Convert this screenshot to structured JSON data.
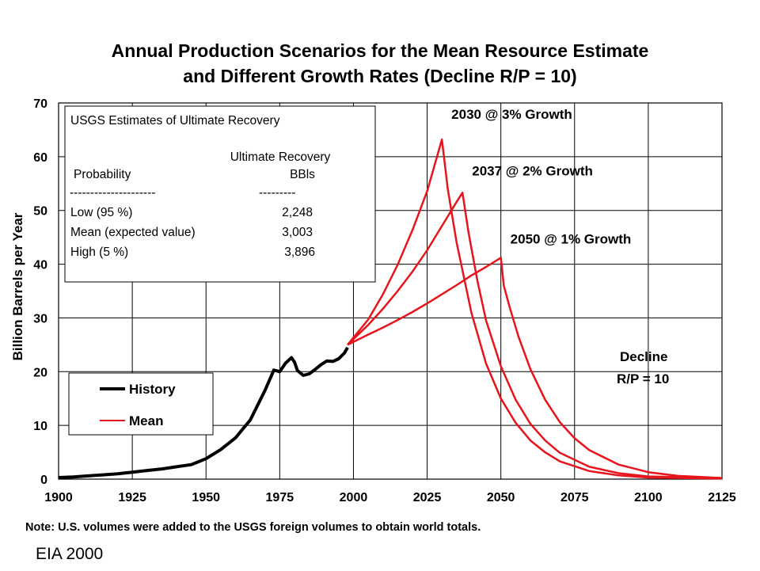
{
  "chart_data": {
    "type": "line",
    "title": "Annual Production Scenarios for the Mean Resource Estimate",
    "subtitle": "and Different Growth Rates (Decline R/P = 10)",
    "xlabel": "",
    "ylabel": "Billion Barrels per Year",
    "xlim": [
      1900,
      2125
    ],
    "ylim": [
      0,
      70
    ],
    "x_ticks": [
      "1900",
      "1925",
      "1950",
      "1975",
      "2000",
      "2025",
      "2050",
      "2075",
      "2100",
      "2125"
    ],
    "y_ticks": [
      "0",
      "10",
      "20",
      "30",
      "40",
      "50",
      "60",
      "70"
    ],
    "grid": true,
    "legend": {
      "placement": "bottom-left",
      "entries": [
        {
          "label": "History",
          "color": "#000000"
        },
        {
          "label": "Mean",
          "color": "#e8141c"
        }
      ]
    },
    "series": [
      {
        "name": "History",
        "color": "#000000",
        "points": [
          [
            1900,
            0.3
          ],
          [
            1905,
            0.4
          ],
          [
            1910,
            0.6
          ],
          [
            1915,
            0.8
          ],
          [
            1920,
            1.0
          ],
          [
            1925,
            1.3
          ],
          [
            1930,
            1.6
          ],
          [
            1935,
            1.9
          ],
          [
            1940,
            2.3
          ],
          [
            1945,
            2.7
          ],
          [
            1950,
            3.8
          ],
          [
            1955,
            5.5
          ],
          [
            1960,
            7.7
          ],
          [
            1965,
            11.0
          ],
          [
            1970,
            16.5
          ],
          [
            1973,
            20.3
          ],
          [
            1975,
            20.0
          ],
          [
            1977,
            21.6
          ],
          [
            1979,
            22.6
          ],
          [
            1980,
            21.8
          ],
          [
            1981,
            20.2
          ],
          [
            1983,
            19.3
          ],
          [
            1985,
            19.6
          ],
          [
            1987,
            20.4
          ],
          [
            1989,
            21.3
          ],
          [
            1991,
            22.0
          ],
          [
            1993,
            21.9
          ],
          [
            1995,
            22.4
          ],
          [
            1997,
            23.5
          ],
          [
            1998,
            24.5
          ]
        ]
      },
      {
        "name": "Mean",
        "color": "#e8141c",
        "segments": [
          [
            [
              1998,
              25.0
            ],
            [
              2005,
              29.7
            ],
            [
              2010,
              34.4
            ],
            [
              2015,
              39.9
            ],
            [
              2020,
              46.3
            ],
            [
              2025,
              53.6
            ],
            [
              2030,
              63.2
            ],
            [
              2032,
              54.0
            ],
            [
              2035,
              44.0
            ],
            [
              2040,
              31.0
            ],
            [
              2045,
              21.5
            ],
            [
              2050,
              15.0
            ],
            [
              2055,
              10.5
            ],
            [
              2060,
              7.2
            ],
            [
              2065,
              5.0
            ],
            [
              2070,
              3.3
            ],
            [
              2080,
              1.5
            ],
            [
              2090,
              0.7
            ],
            [
              2100,
              0.3
            ],
            [
              2125,
              0.1
            ]
          ],
          [
            [
              1998,
              25.0
            ],
            [
              2005,
              28.7
            ],
            [
              2010,
              31.7
            ],
            [
              2015,
              35.0
            ],
            [
              2020,
              38.6
            ],
            [
              2025,
              42.6
            ],
            [
              2030,
              47.1
            ],
            [
              2035,
              51.6
            ],
            [
              2037,
              53.3
            ],
            [
              2039,
              46.0
            ],
            [
              2042,
              37.0
            ],
            [
              2045,
              29.5
            ],
            [
              2050,
              21.0
            ],
            [
              2055,
              14.8
            ],
            [
              2060,
              10.3
            ],
            [
              2065,
              7.2
            ],
            [
              2070,
              4.9
            ],
            [
              2080,
              2.3
            ],
            [
              2090,
              1.1
            ],
            [
              2100,
              0.5
            ],
            [
              2125,
              0.2
            ]
          ],
          [
            [
              1998,
              25.0
            ],
            [
              2005,
              26.9
            ],
            [
              2010,
              28.2
            ],
            [
              2015,
              29.6
            ],
            [
              2020,
              31.1
            ],
            [
              2025,
              32.7
            ],
            [
              2030,
              34.4
            ],
            [
              2035,
              36.1
            ],
            [
              2040,
              37.9
            ],
            [
              2045,
              39.5
            ],
            [
              2050,
              41.2
            ],
            [
              2051,
              36.0
            ],
            [
              2053,
              32.0
            ],
            [
              2056,
              26.5
            ],
            [
              2060,
              20.5
            ],
            [
              2065,
              14.8
            ],
            [
              2070,
              10.6
            ],
            [
              2075,
              7.6
            ],
            [
              2080,
              5.4
            ],
            [
              2090,
              2.7
            ],
            [
              2100,
              1.3
            ],
            [
              2110,
              0.6
            ],
            [
              2125,
              0.2
            ]
          ]
        ]
      }
    ],
    "annotations": [
      {
        "text": "2030 @ 3% Growth",
        "x": 2030,
        "y": 63.2
      },
      {
        "text": "2037 @ 2% Growth",
        "x": 2037,
        "y": 53.3
      },
      {
        "text": "2050 @ 1% Growth",
        "x": 2050,
        "y": 41.2
      },
      {
        "text": "Decline",
        "x": 2107,
        "y": 22
      },
      {
        "text": "R/P = 10",
        "x": 2107,
        "y": 18.5
      }
    ],
    "table": {
      "title": "USGS Estimates of Ultimate Recovery",
      "col_header_line1": "Ultimate Recovery",
      "col_header_left": "Probability",
      "col_header_right": "BBls",
      "dashes_left": "---------------------",
      "dashes_right": "---------",
      "rows": [
        {
          "label": "Low (95 %)",
          "value": "2,248"
        },
        {
          "label": "Mean (expected value)",
          "value": "3,003"
        },
        {
          "label": "High (5 %)",
          "value": "3,896"
        }
      ]
    },
    "note": "Note: U.S. volumes were added to the USGS foreign volumes to obtain world totals.",
    "source": "EIA 2000"
  }
}
